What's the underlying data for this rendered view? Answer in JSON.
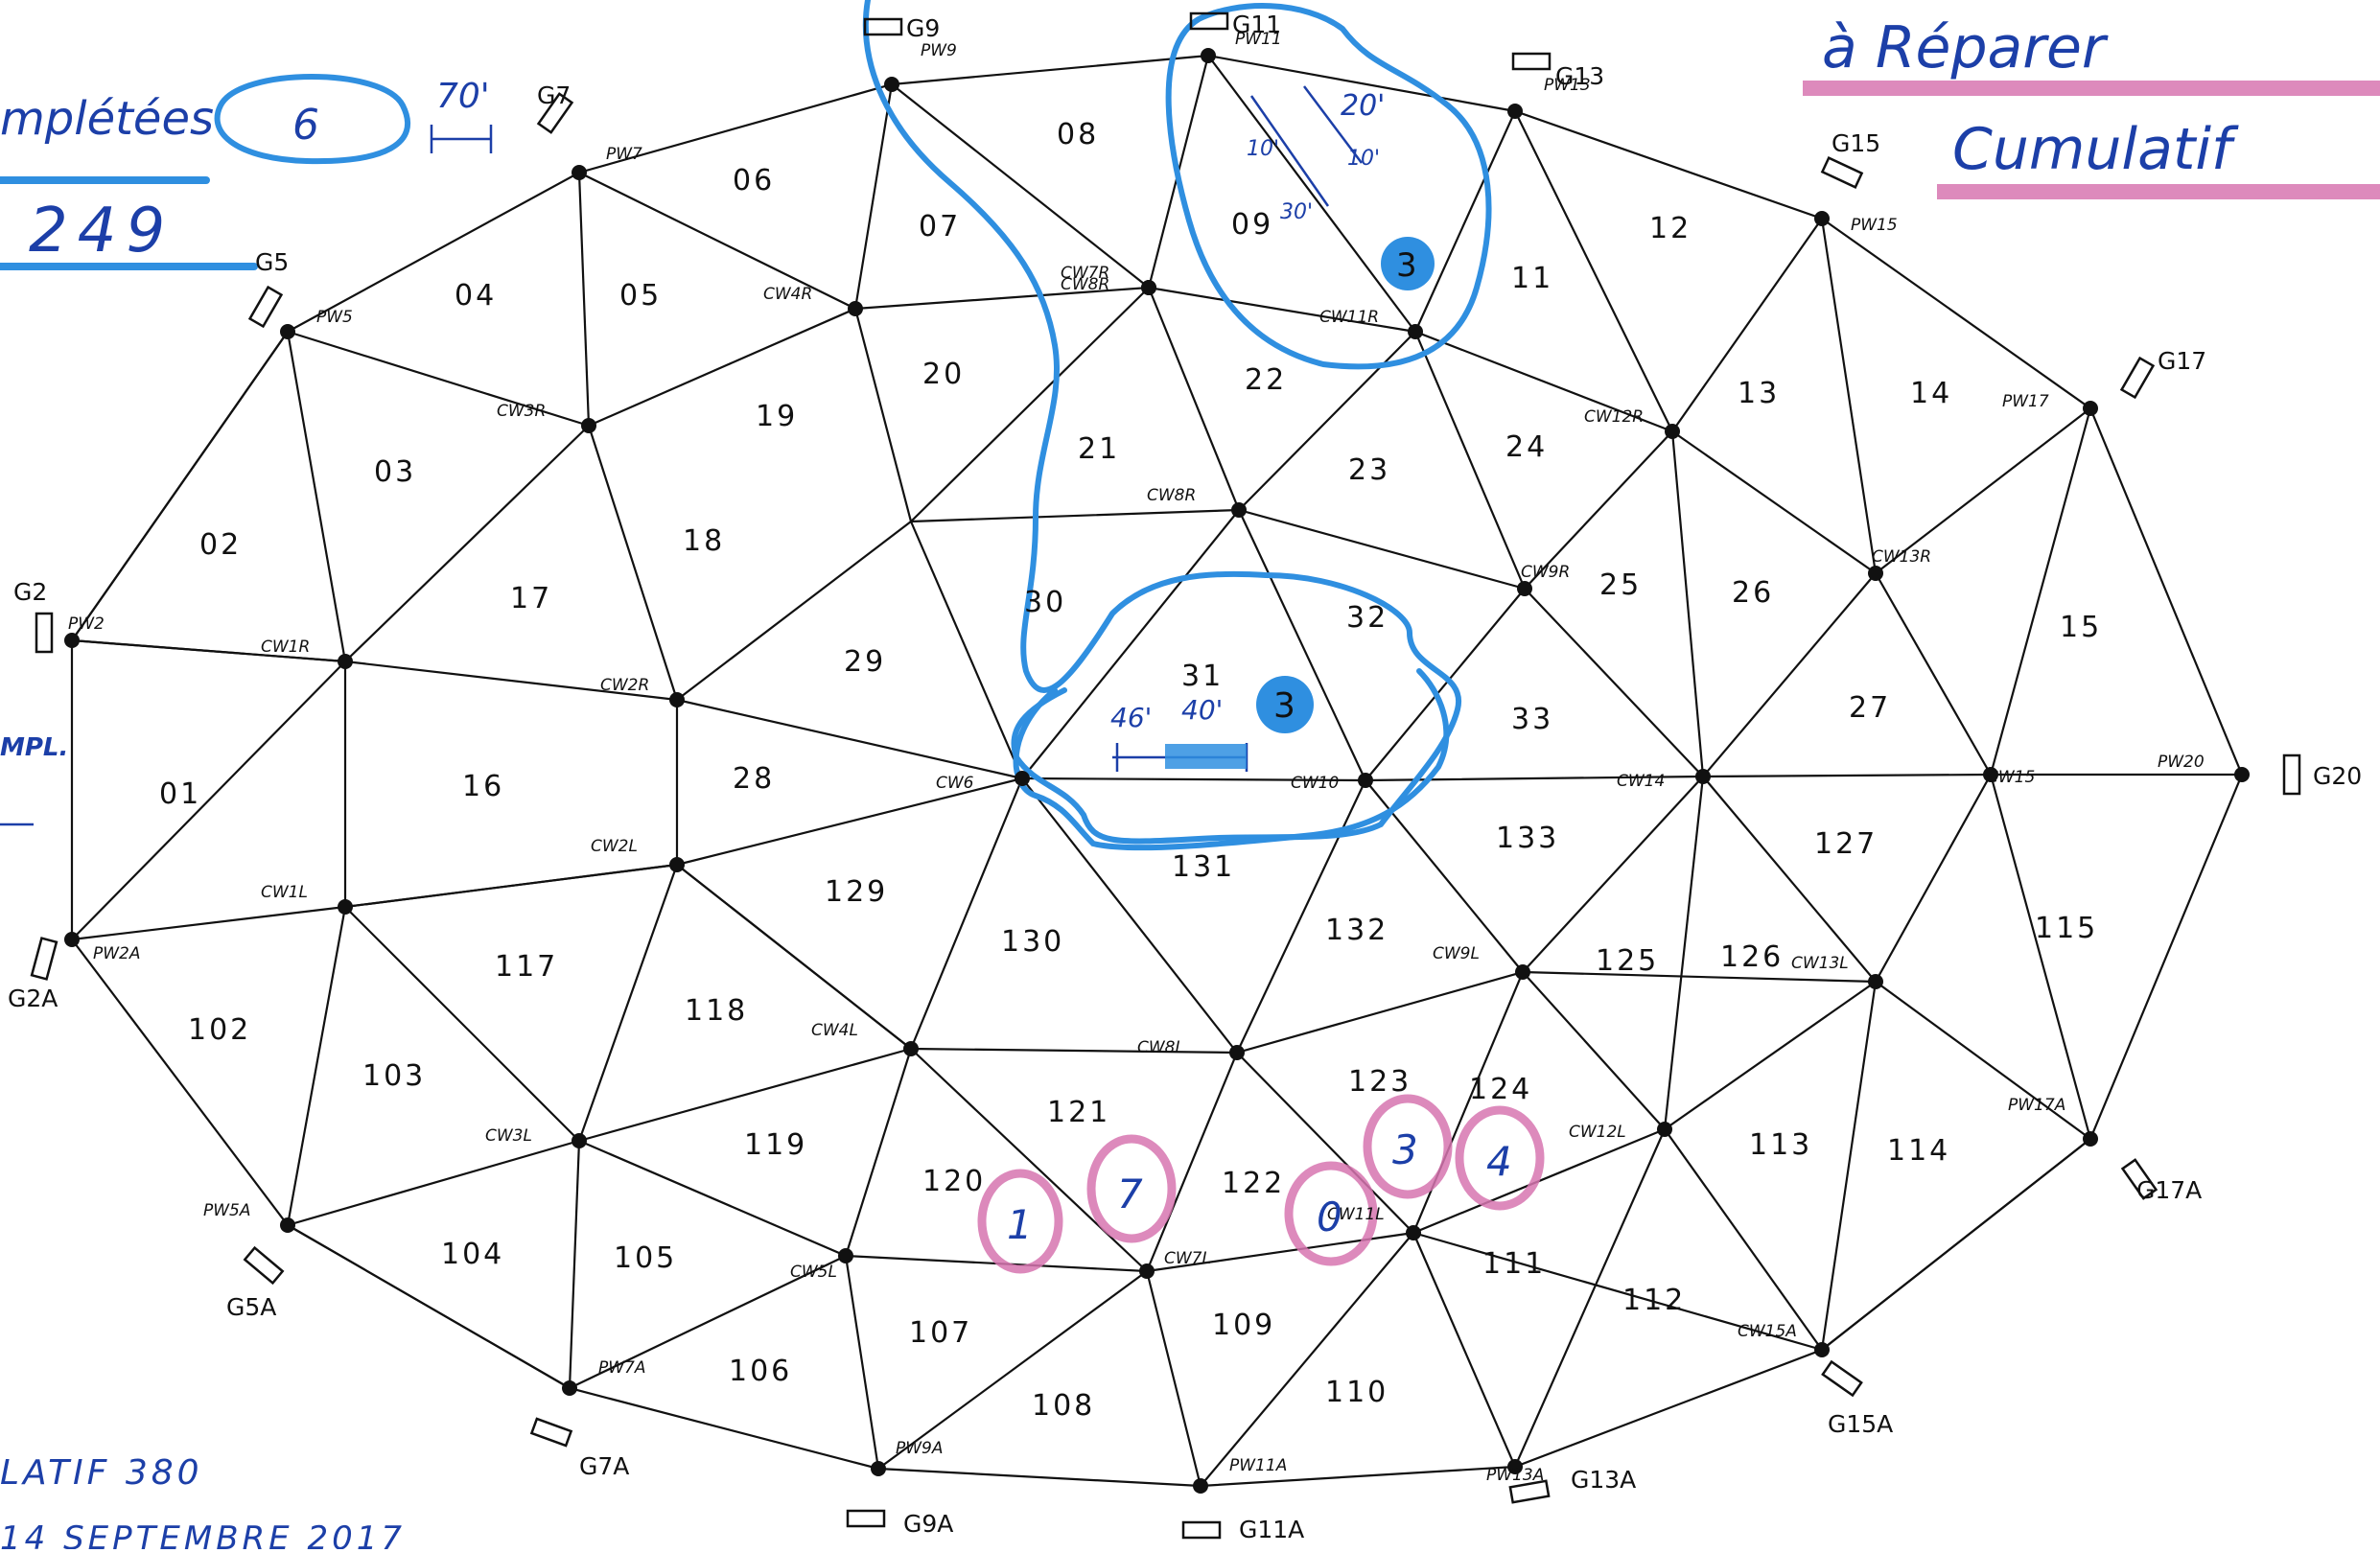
{
  "colors": {
    "ink": "#111111",
    "blue_marker": "#2f8fe0",
    "blue_pen": "#1c3fa8",
    "pink_marker": "#d775b0"
  },
  "header": {
    "left_line1_text": "mplétées",
    "left_count": "6",
    "left_dim": "70'",
    "left_total": "249",
    "left_side_label": "MPL.",
    "right_line1": "à Réparer",
    "right_line2": "Cumulatif"
  },
  "footer": {
    "cumul_text": "LATIF 380",
    "date_text": "14 SEPTEMBRE 2017"
  },
  "gauges": [
    "G9",
    "G11",
    "G13",
    "G7",
    "G15",
    "G5",
    "G17",
    "G2",
    "G20",
    "G2A",
    "G17A",
    "G5A",
    "G15A",
    "G7A",
    "G13A",
    "G9A",
    "G11A"
  ],
  "nodes": [
    "PW9",
    "PW11",
    "PW13",
    "PW7",
    "PW15",
    "PW5",
    "PW17",
    "CW8R",
    "CW7R",
    "CW11R",
    "CW3R",
    "CW12R",
    "CW4R",
    "CW8R",
    "CW13R",
    "CW9R",
    "PW2",
    "CW1R",
    "CW2R",
    "CW10",
    "CW6",
    "CW14",
    "CW15",
    "PW20",
    "CW2L",
    "CW1L",
    "PW2A",
    "CW9L",
    "CW13L",
    "CW4L",
    "CW8L",
    "CW3L",
    "CW12L",
    "CW11L",
    "PW5A",
    "CW5L",
    "CW7L",
    "CW15A",
    "PW7A",
    "PW13A",
    "PW9A",
    "PW11A",
    "PW17A"
  ],
  "zones": [
    "06",
    "07",
    "08",
    "09",
    "12",
    "04",
    "05",
    "11",
    "20",
    "22",
    "13",
    "14",
    "03",
    "19",
    "24",
    "21",
    "23",
    "02",
    "18",
    "17",
    "25",
    "26",
    "30",
    "32",
    "15",
    "29",
    "27",
    "33",
    "01",
    "16",
    "28",
    "133",
    "127",
    "131",
    "129",
    "115",
    "130",
    "132",
    "117",
    "125",
    "126",
    "118",
    "102",
    "123",
    "124",
    "103",
    "121",
    "119",
    "113",
    "114",
    "120",
    "122",
    "104",
    "105",
    "111",
    "112",
    "107",
    "109",
    "106",
    "110",
    "108"
  ],
  "annotations": {
    "zone_09_count": "3",
    "zone_09_dim_a": "20'",
    "zone_09_dim_b": "10'",
    "zone_09_dim_c": "10'",
    "zone_09_dim_d": "30'",
    "zone_31_label": "31",
    "zone_31_count": "3",
    "zone_31_dim_a": "46'",
    "zone_31_dim_b": "40'",
    "pink_counts": [
      "1",
      "7",
      "0",
      "3",
      "4"
    ]
  }
}
